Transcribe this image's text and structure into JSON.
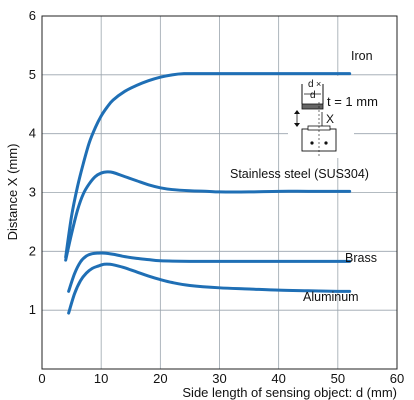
{
  "chart_data": {
    "type": "line",
    "title": "",
    "xlabel": "Side length of sensing object: d (mm)",
    "ylabel": "Distance X (mm)",
    "xlim": [
      0,
      60
    ],
    "ylim": [
      0,
      6
    ],
    "xticks": [
      "0",
      "10",
      "20",
      "30",
      "40",
      "50",
      "60"
    ],
    "yticks": [
      "1",
      "2",
      "3",
      "4",
      "5",
      "6"
    ],
    "grid": true,
    "series": [
      {
        "name": "Iron",
        "color": "#1f6fb5",
        "x": [
          4,
          5,
          6,
          7,
          8,
          9,
          10,
          11,
          12,
          14,
          16,
          18,
          20,
          22,
          24,
          26,
          30,
          35,
          40,
          45,
          50,
          52
        ],
        "y": [
          1.9,
          2.6,
          3.1,
          3.5,
          3.85,
          4.1,
          4.3,
          4.45,
          4.57,
          4.72,
          4.82,
          4.9,
          4.96,
          5.0,
          5.02,
          5.02,
          5.02,
          5.02,
          5.02,
          5.02,
          5.02,
          5.02
        ]
      },
      {
        "name": "Stainless steel (SUS304)",
        "color": "#1f6fb5",
        "x": [
          4,
          5,
          6,
          7,
          8,
          9,
          10,
          11,
          12,
          14,
          16,
          18,
          20,
          22,
          25,
          28,
          30,
          35,
          40,
          45,
          50,
          52
        ],
        "y": [
          1.85,
          2.3,
          2.7,
          2.98,
          3.15,
          3.27,
          3.33,
          3.35,
          3.34,
          3.27,
          3.2,
          3.13,
          3.08,
          3.05,
          3.03,
          3.02,
          3.01,
          3.01,
          3.02,
          3.02,
          3.02,
          3.02
        ]
      },
      {
        "name": "Brass",
        "color": "#1f6fb5",
        "x": [
          4.5,
          5.5,
          6.5,
          7.5,
          8.5,
          9.5,
          10.5,
          12,
          14,
          16,
          18,
          20,
          25,
          30,
          35,
          40,
          45,
          50,
          52
        ],
        "y": [
          1.32,
          1.62,
          1.82,
          1.92,
          1.96,
          1.97,
          1.97,
          1.95,
          1.91,
          1.88,
          1.86,
          1.84,
          1.83,
          1.83,
          1.83,
          1.83,
          1.83,
          1.83,
          1.83
        ]
      },
      {
        "name": "Aluminum",
        "color": "#1f6fb5",
        "x": [
          4.5,
          5.5,
          6.5,
          7.5,
          8.5,
          9.5,
          10.5,
          11.5,
          12.5,
          14,
          16,
          18,
          20,
          22,
          25,
          30,
          35,
          40,
          45,
          50,
          52
        ],
        "y": [
          0.95,
          1.28,
          1.5,
          1.63,
          1.71,
          1.75,
          1.78,
          1.78,
          1.76,
          1.72,
          1.65,
          1.58,
          1.52,
          1.47,
          1.42,
          1.38,
          1.36,
          1.34,
          1.33,
          1.32,
          1.32
        ]
      }
    ],
    "annotation": {
      "d_label": "d",
      "t_label": "t = 1 mm",
      "x_label": "X"
    }
  }
}
